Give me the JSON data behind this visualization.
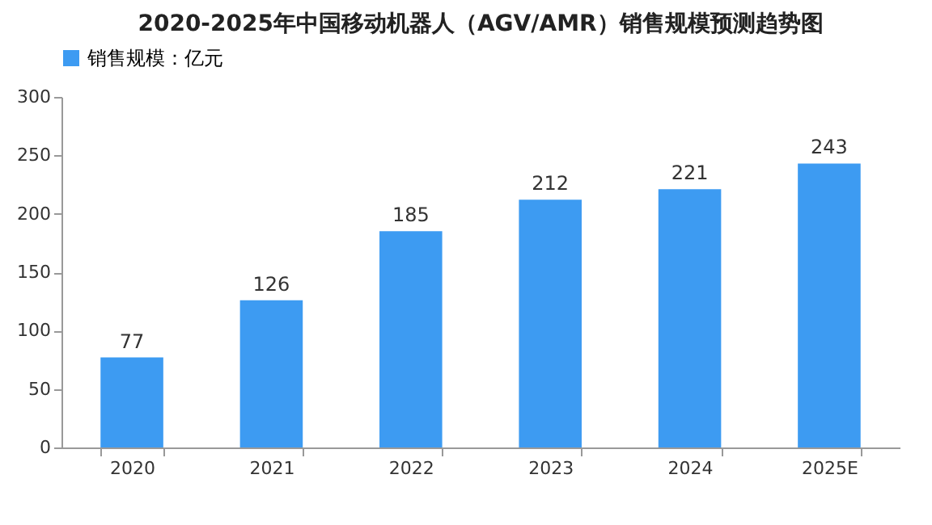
{
  "chart_data": {
    "type": "bar",
    "title": "2020-2025年中国移动机器人（AGV/AMR）销售规模预测趋势图",
    "categories": [
      "2020",
      "2021",
      "2022",
      "2023",
      "2024",
      "2025E"
    ],
    "series": [
      {
        "name": "销售规模：亿元",
        "color": "#3d9bf2",
        "values": [
          77,
          126,
          185,
          212,
          221,
          243
        ]
      }
    ],
    "ylim": [
      0,
      300
    ],
    "yticks": [
      0,
      50,
      100,
      150,
      200,
      250,
      300
    ],
    "data_labels": true,
    "legend": "top"
  }
}
